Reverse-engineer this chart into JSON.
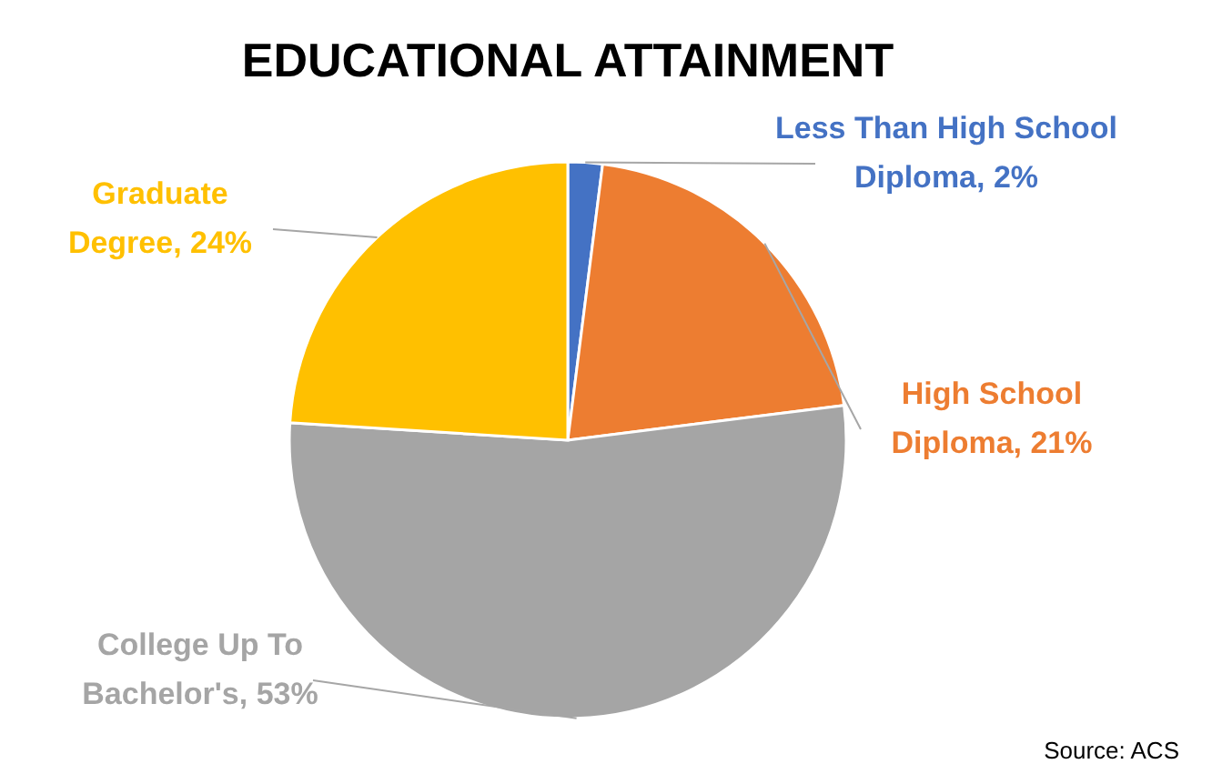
{
  "chart_data": {
    "type": "pie",
    "title": "EDUCATIONAL ATTAINMENT",
    "categories": [
      "Less Than High School Diploma",
      "High School Diploma",
      "College Up To Bachelor's",
      "Graduate Degree"
    ],
    "values": [
      2,
      21,
      53,
      24
    ],
    "value_labels": [
      "2%",
      "21%",
      "53%",
      "24%"
    ],
    "colors": [
      "#4472c4",
      "#ed7d31",
      "#a5a5a5",
      "#ffc000"
    ],
    "legend": false,
    "annotations": [
      "Source: ACS"
    ]
  }
}
